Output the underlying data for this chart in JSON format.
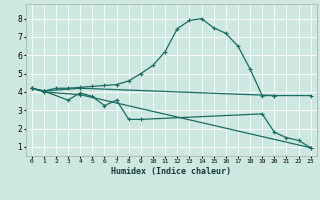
{
  "xlabel": "Humidex (Indice chaleur)",
  "xlim": [
    -0.5,
    23.5
  ],
  "ylim": [
    0.5,
    8.8
  ],
  "xticks": [
    0,
    1,
    2,
    3,
    4,
    5,
    6,
    7,
    8,
    9,
    10,
    11,
    12,
    13,
    14,
    15,
    16,
    17,
    18,
    19,
    20,
    21,
    22,
    23
  ],
  "yticks": [
    1,
    2,
    3,
    4,
    5,
    6,
    7,
    8
  ],
  "bg_color": "#cce8e0",
  "line_color": "#1a6b62",
  "grid_color": "#ffffff",
  "curves": [
    {
      "x": [
        0,
        1,
        2,
        3,
        4,
        5,
        6,
        7,
        8,
        9,
        10,
        11,
        12,
        13,
        14,
        15,
        16,
        17,
        18,
        19,
        20
      ],
      "y": [
        4.2,
        4.05,
        4.2,
        4.2,
        4.25,
        4.3,
        4.35,
        4.4,
        4.6,
        5.0,
        5.45,
        6.2,
        7.45,
        7.9,
        8.0,
        7.5,
        7.2,
        6.5,
        5.25,
        3.8,
        3.8
      ]
    },
    {
      "x": [
        0,
        1,
        4,
        20,
        23
      ],
      "y": [
        4.2,
        4.05,
        4.2,
        3.8,
        3.8
      ]
    },
    {
      "x": [
        0,
        1,
        3,
        4,
        5,
        6,
        7,
        8,
        9,
        19,
        20,
        21,
        22,
        23
      ],
      "y": [
        4.2,
        4.05,
        3.55,
        3.95,
        3.75,
        3.25,
        3.55,
        2.5,
        2.5,
        2.8,
        1.8,
        1.5,
        1.35,
        0.95
      ]
    },
    {
      "x": [
        0,
        1,
        4,
        23
      ],
      "y": [
        4.2,
        4.0,
        3.85,
        0.95
      ]
    }
  ]
}
